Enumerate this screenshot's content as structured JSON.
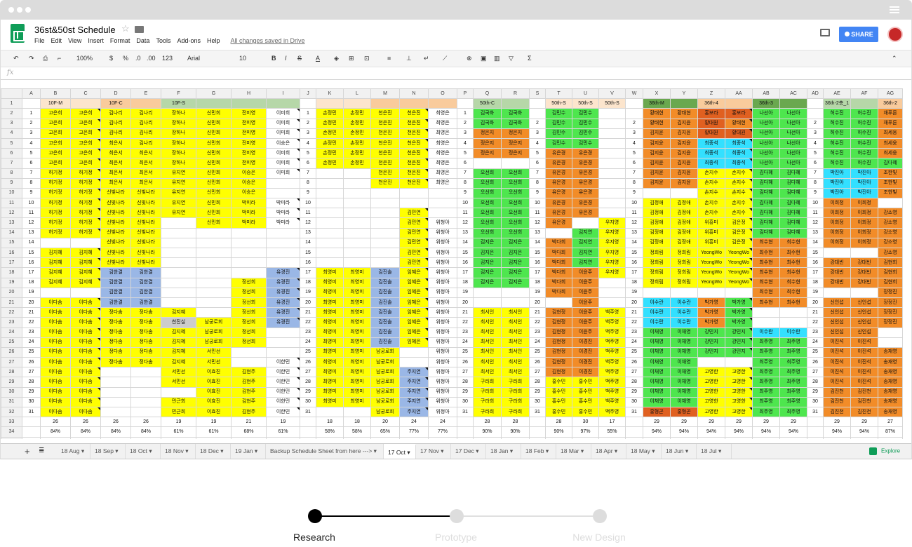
{
  "doc": {
    "title": "36st&50st Schedule",
    "saved": "All changes saved in Drive",
    "share": "SHARE",
    "menu": [
      "File",
      "Edit",
      "View",
      "Insert",
      "Format",
      "Data",
      "Tools",
      "Add-ons",
      "Help"
    ]
  },
  "toolbar": {
    "zoom": "100%",
    "currency": "$",
    "percent": "%",
    "dec1": ".0",
    "dec2": ".00",
    "numfmt": "123",
    "font": "Arial",
    "size": "10",
    "bold": "B",
    "italic": "I",
    "strike": "S",
    "fontcolor": "A"
  },
  "formula_bar": {
    "label": "fx",
    "value": ""
  },
  "columns": [
    "A",
    "B",
    "C",
    "D",
    "E",
    "F",
    "G",
    "H",
    "I",
    "J",
    "K",
    "L",
    "M",
    "N",
    "O",
    "P",
    "Q",
    "R",
    "S",
    "T",
    "U",
    "V",
    "W",
    "X",
    "Y",
    "Z",
    "AA",
    "AB",
    "AC",
    "AD",
    "AE",
    "AF",
    "AG"
  ],
  "header_row": [
    "",
    "10F-M",
    "",
    "10F-C",
    "",
    "10F-S",
    "",
    "",
    "",
    "",
    "",
    "",
    "",
    "",
    "",
    "",
    "50th-C",
    "",
    "",
    "50th-S",
    "50th-S",
    "50th-S",
    "",
    "36th-M",
    "",
    "36th-4",
    "",
    "36th-3",
    "",
    "",
    "36th-2층_1",
    "",
    "36th-2"
  ],
  "rows": [
    [
      "1",
      "고은희",
      "고은희",
      "김나리",
      "김나리",
      "장하나",
      "신민희",
      "전미영",
      "이미희",
      "1",
      "손정민",
      "손정민",
      "천은진",
      "천은진",
      "최영은",
      "1",
      "김국화",
      "김국화",
      "",
      "김민수",
      "김민수",
      "",
      "",
      "황태현",
      "황태현",
      "홍보라",
      "홍보라",
      "나선아",
      "나선아",
      "",
      "허수진",
      "허수진",
      "채푸른"
    ],
    [
      "2",
      "고은희",
      "고은희",
      "김나리",
      "김나리",
      "장하나",
      "신민희",
      "전미영",
      "이미희",
      "2",
      "손정민",
      "손정민",
      "천은진",
      "천은진",
      "최영은",
      "2",
      "김국화",
      "김국화",
      "2",
      "김민수",
      "김민수",
      "",
      "2",
      "황태현",
      "김지윤",
      "황대원",
      "황태현",
      "나선아",
      "나선아",
      "2",
      "허수진",
      "허수진",
      "채푸른"
    ],
    [
      "3",
      "고은희",
      "고은희",
      "김나리",
      "김나리",
      "장하나",
      "신민희",
      "전미영",
      "이미희",
      "3",
      "손정민",
      "손정민",
      "천은진",
      "천은진",
      "최영은",
      "3",
      "정은지",
      "정은지",
      "3",
      "김민수",
      "김민수",
      "",
      "3",
      "김지윤",
      "김지윤",
      "황대원",
      "황대원",
      "나선아",
      "나선아",
      "3",
      "허수진",
      "허수진",
      "최세웅"
    ],
    [
      "4",
      "고은희",
      "고은희",
      "최은서",
      "김나리",
      "장하나",
      "신민희",
      "전미영",
      "이승은",
      "4",
      "손정민",
      "손정민",
      "천은진",
      "천은진",
      "최영은",
      "4",
      "정은지",
      "정은지",
      "4",
      "김민수",
      "김민수",
      "",
      "4",
      "김지윤",
      "김지윤",
      "최종석",
      "최종석",
      "나선아",
      "나선아",
      "4",
      "허수진",
      "허수진",
      "최세웅"
    ],
    [
      "5",
      "고은희",
      "고은희",
      "최은서",
      "최은서",
      "장하나",
      "신민희",
      "전미영",
      "이미희",
      "5",
      "손정민",
      "손정민",
      "천은진",
      "천은진",
      "최영은",
      "5",
      "정은지",
      "정은지",
      "5",
      "유은경",
      "유은경",
      "",
      "5",
      "김지윤",
      "김지윤",
      "최종석",
      "최종석",
      "나선아",
      "나선아",
      "5",
      "허수진",
      "허수진",
      "최세웅"
    ],
    [
      "6",
      "고은희",
      "고은희",
      "최은서",
      "최은서",
      "장하나",
      "신민희",
      "전미영",
      "이미희",
      "6",
      "손정민",
      "손정민",
      "천은진",
      "천은진",
      "최영은",
      "6",
      "",
      "",
      "6",
      "유은경",
      "유은경",
      "",
      "6",
      "김지윤",
      "김지윤",
      "최종석",
      "최종석",
      "나선아",
      "나선아",
      "6",
      "허수진",
      "허수진",
      "김다혜"
    ],
    [
      "7",
      "허기정",
      "허기정",
      "최은서",
      "최은서",
      "유지연",
      "신민희",
      "이승은",
      "이미희",
      "7",
      "",
      "",
      "천은진",
      "천은진",
      "최영은",
      "7",
      "오선희",
      "오선희",
      "7",
      "유은경",
      "유은경",
      "",
      "7",
      "김지윤",
      "김지윤",
      "손지수",
      "손지수",
      "김다혜",
      "김다혜",
      "7",
      "박진아",
      "박진아",
      "조한빛"
    ],
    [
      "8",
      "허기정",
      "허기정",
      "최은서",
      "최은서",
      "유지연",
      "신민희",
      "이승은",
      "",
      "8",
      "",
      "",
      "천은진",
      "천은진",
      "최영은",
      "8",
      "오선희",
      "오선희",
      "8",
      "유은경",
      "유은경",
      "",
      "8",
      "김지윤",
      "김지윤",
      "손지수",
      "손지수",
      "김다혜",
      "김다혜",
      "8",
      "박진아",
      "박진아",
      "조한빛"
    ],
    [
      "9",
      "허기정",
      "허기정",
      "신빛나라",
      "신빛나라",
      "유지연",
      "신민희",
      "이승은",
      "",
      "9",
      "",
      "",
      "",
      "",
      "",
      "9",
      "오선희",
      "오선희",
      "9",
      "유은경",
      "유은경",
      "",
      "9",
      "",
      "",
      "손지수",
      "손지수",
      "김다혜",
      "김다혜",
      "9",
      "박진아",
      "박진아",
      "조한빛"
    ],
    [
      "10",
      "허기정",
      "허기정",
      "신빛나라",
      "신빛나라",
      "유지연",
      "신민희",
      "박미라",
      "박미라",
      "10",
      "",
      "",
      "",
      "",
      "",
      "10",
      "오선희",
      "오선희",
      "10",
      "유은경",
      "유은경",
      "",
      "10",
      "김정애",
      "김정애",
      "손지수",
      "손지수",
      "김다혜",
      "김다혜",
      "10",
      "이희정",
      "이희정",
      ""
    ],
    [
      "11",
      "허기정",
      "허기정",
      "신빛나라",
      "신빛나라",
      "유지연",
      "신민희",
      "박미라",
      "박미라",
      "11",
      "",
      "",
      "",
      "김민연",
      "",
      "11",
      "오선희",
      "오선희",
      "11",
      "유은경",
      "유은경",
      "",
      "11",
      "김정애",
      "김정애",
      "손지수",
      "손지수",
      "김다혜",
      "김다혜",
      "11",
      "이희정",
      "이희정",
      "강소영"
    ],
    [
      "12",
      "허기정",
      "허기정",
      "신빛나라",
      "신빛나라",
      "",
      "신민희",
      "박미라",
      "박미라",
      "12",
      "",
      "",
      "",
      "김민연",
      "위청아",
      "12",
      "오선희",
      "오선희",
      "12",
      "유은경",
      "",
      "우지영",
      "12",
      "김정애",
      "김정애",
      "위흥미",
      "김은정",
      "김다혜",
      "김다혜",
      "12",
      "이희정",
      "이희정",
      "강소영"
    ],
    [
      "13",
      "허기정",
      "허기정",
      "신빛나라",
      "신빛나라",
      "",
      "",
      "",
      "",
      "13",
      "",
      "",
      "",
      "김민연",
      "위청아",
      "13",
      "오선희",
      "오선희",
      "13",
      "",
      "김지연",
      "우지영",
      "13",
      "김정애",
      "김정애",
      "위흥미",
      "김은정",
      "김다혜",
      "김다혜",
      "13",
      "이희정",
      "이희정",
      "강소영"
    ],
    [
      "14",
      "",
      "",
      "신빛나라",
      "신빛나라",
      "",
      "",
      "",
      "",
      "14",
      "",
      "",
      "",
      "김민연",
      "위청아",
      "14",
      "김지은",
      "김지은",
      "14",
      "박다희",
      "김지연",
      "우지영",
      "14",
      "김정애",
      "김정애",
      "위흥미",
      "김은정",
      "최수현",
      "최수현",
      "14",
      "이희정",
      "이희정",
      "강소영"
    ],
    [
      "15",
      "김지혜",
      "김지혜",
      "신빛나라",
      "신빛나라",
      "",
      "",
      "",
      "",
      "15",
      "",
      "",
      "",
      "김민연",
      "위청아",
      "15",
      "김지은",
      "김지은",
      "15",
      "박다희",
      "김지연",
      "우지영",
      "15",
      "정희림",
      "정희림",
      "YeongWo",
      "YeongWo",
      "최수현",
      "최수현",
      "15",
      "",
      "",
      "강소영"
    ],
    [
      "16",
      "김지혜",
      "김지혜",
      "신빛나라",
      "신빛나라",
      "",
      "",
      "",
      "",
      "16",
      "",
      "",
      "",
      "김민연",
      "위청아",
      "16",
      "김지은",
      "김지은",
      "16",
      "박다희",
      "김지연",
      "우지영",
      "16",
      "정희림",
      "정희림",
      "YeongWo",
      "YeongWo",
      "최수현",
      "최수현",
      "16",
      "강대빈",
      "강대빈",
      "김현희"
    ],
    [
      "17",
      "김지혜",
      "김지혜",
      "김한결",
      "김한결",
      "",
      "",
      "",
      "유경진",
      "17",
      "최영미",
      "최영미",
      "김진솔",
      "임혜은",
      "위청아",
      "17",
      "김지은",
      "김지은",
      "17",
      "박다희",
      "이윤주",
      "우지영",
      "17",
      "정희림",
      "정희림",
      "YeongWo",
      "YeongWo",
      "최수현",
      "최수현",
      "17",
      "강대빈",
      "강대빈",
      "김현희"
    ],
    [
      "18",
      "김지혜",
      "김지혜",
      "김한결",
      "김한결",
      "",
      "",
      "정선희",
      "유경진",
      "18",
      "최영미",
      "최영미",
      "김진솔",
      "임혜은",
      "위청아",
      "18",
      "김지은",
      "김지은",
      "18",
      "박다희",
      "이윤주",
      "",
      "18",
      "정희림",
      "정희림",
      "YeongWo",
      "YeongWo",
      "최수현",
      "최수현",
      "18",
      "강대빈",
      "강대빈",
      "김현희"
    ],
    [
      "19",
      "",
      "",
      "김한결",
      "김한결",
      "",
      "",
      "정선희",
      "유경진",
      "19",
      "최영미",
      "최영미",
      "김진솔",
      "임혜은",
      "위청아",
      "19",
      "",
      "",
      "19",
      "박다희",
      "이윤주",
      "",
      "19",
      "",
      "",
      "",
      "",
      "최수현",
      "최수현",
      "19",
      "",
      "",
      "장정진"
    ],
    [
      "20",
      "이다솜",
      "이다솜",
      "김한결",
      "김한결",
      "",
      "",
      "정선희",
      "유경진",
      "20",
      "최영미",
      "최영미",
      "김진솔",
      "임혜은",
      "위청아",
      "20",
      "",
      "",
      "20",
      "",
      "이윤주",
      "",
      "20",
      "이수란",
      "이수란",
      "박가영",
      "박가영",
      "최수현",
      "최수현",
      "20",
      "신인섭",
      "신인섭",
      "장정진"
    ],
    [
      "21",
      "이다솜",
      "이다솜",
      "정다솜",
      "정다솜",
      "김지혜",
      "",
      "정선희",
      "유경진",
      "21",
      "최영미",
      "최영미",
      "김진솔",
      "임혜은",
      "위청아",
      "21",
      "최서인",
      "최서인",
      "21",
      "김현정",
      "이윤주",
      "백주영",
      "21",
      "이수란",
      "이수란",
      "박가영",
      "박가영",
      "",
      "",
      "21",
      "신인섭",
      "신인섭",
      "장정진"
    ],
    [
      "22",
      "이다솜",
      "이다솜",
      "정다솜",
      "정다솜",
      "천진실",
      "남궁로회",
      "정선희",
      "유경진",
      "22",
      "최영미",
      "최영미",
      "김진솔",
      "임혜은",
      "위청아",
      "22",
      "최서인",
      "최서인",
      "22",
      "김현정",
      "이윤주",
      "백주영",
      "22",
      "이수란",
      "이수란",
      "박가영",
      "박가영",
      "",
      "",
      "22",
      "신인섭",
      "신인섭",
      "장정진"
    ],
    [
      "23",
      "이다솜",
      "이다솜",
      "정다솜",
      "정다솜",
      "김지혜",
      "남궁로회",
      "정선희",
      "",
      "23",
      "최영미",
      "최영미",
      "김진솔",
      "임혜은",
      "위청아",
      "23",
      "최서인",
      "최서인",
      "23",
      "김현정",
      "이윤주",
      "백주영",
      "23",
      "이채영",
      "이채영",
      "강민지",
      "강민지",
      "이수란",
      "이수란",
      "23",
      "신인섭",
      "신인섭",
      ""
    ],
    [
      "24",
      "이다솜",
      "이다솜",
      "정다솜",
      "정다솜",
      "김지혜",
      "남궁로회",
      "정선희",
      "",
      "24",
      "최영미",
      "최영미",
      "김진솔",
      "임혜은",
      "위청아",
      "24",
      "최서인",
      "최서인",
      "24",
      "김현정",
      "이경진",
      "백주영",
      "24",
      "이채영",
      "이채영",
      "강민지",
      "강민지",
      "최주영",
      "최주영",
      "24",
      "이진석",
      "이진석",
      ""
    ],
    [
      "25",
      "이다솜",
      "이다솜",
      "정다솜",
      "정다솜",
      "김지혜",
      "서민선",
      "",
      "",
      "25",
      "최영미",
      "최영미",
      "남궁로회",
      "",
      "위청아",
      "25",
      "최서인",
      "최서인",
      "25",
      "김현정",
      "이경진",
      "백주영",
      "25",
      "이채영",
      "이채영",
      "강민지",
      "강민지",
      "최주영",
      "최주영",
      "25",
      "이진석",
      "이진석",
      "송재영"
    ],
    [
      "26",
      "이다솜",
      "이다솜",
      "정다솜",
      "정다솜",
      "김지혜",
      "서민선",
      "",
      "이한민",
      "26",
      "최영미",
      "최영미",
      "남궁로회",
      "",
      "위청아",
      "26",
      "최서인",
      "최서인",
      "26",
      "김현정",
      "이경진",
      "백주영",
      "26",
      "이채영",
      "이채영",
      "",
      "",
      "최주영",
      "최주영",
      "26",
      "이진석",
      "이진석",
      "송재영"
    ],
    [
      "27",
      "이다솜",
      "이다솜",
      "",
      "",
      "서민선",
      "이효진",
      "김현주",
      "이한민",
      "27",
      "최영미",
      "최영미",
      "남궁로회",
      "주지연",
      "위청아",
      "27",
      "최서인",
      "최서인",
      "27",
      "김현정",
      "이경진",
      "백주영",
      "27",
      "이채영",
      "이채영",
      "고영한",
      "고영한",
      "최주영",
      "최주영",
      "27",
      "이진석",
      "이진석",
      "송재영"
    ],
    [
      "28",
      "이다솜",
      "이다솜",
      "",
      "",
      "서민선",
      "이효진",
      "김현주",
      "이한민",
      "28",
      "최영미",
      "최영미",
      "남궁로회",
      "주지연",
      "위청아",
      "28",
      "구라희",
      "구라희",
      "28",
      "홍수민",
      "홍수민",
      "백주영",
      "28",
      "이채영",
      "이채영",
      "고영한",
      "고영한",
      "최주영",
      "최주영",
      "28",
      "이진석",
      "이진석",
      "송재영"
    ],
    [
      "29",
      "이다솜",
      "이다솜",
      "",
      "",
      "",
      "이효진",
      "김현주",
      "이한민",
      "29",
      "최영미",
      "최영미",
      "남궁로회",
      "주지연",
      "위청아",
      "29",
      "구라희",
      "구라희",
      "29",
      "홍수민",
      "홍수민",
      "백주영",
      "29",
      "이채영",
      "이채영",
      "고영한",
      "고영한",
      "최주영",
      "최주영",
      "29",
      "김진천",
      "김진천",
      "송재영"
    ],
    [
      "30",
      "이다솜",
      "이다솜",
      "",
      "",
      "민근희",
      "이효진",
      "김현주",
      "이한민",
      "30",
      "최영미",
      "최영미",
      "남궁로회",
      "주지연",
      "위청아",
      "30",
      "구라희",
      "구라희",
      "30",
      "홍수민",
      "홍수민",
      "백주영",
      "30",
      "이채영",
      "이채영",
      "고영한",
      "고영한",
      "최주영",
      "최주영",
      "30",
      "김진천",
      "김진천",
      "송재영"
    ],
    [
      "31",
      "이다솜",
      "이다솜",
      "",
      "",
      "민근희",
      "이효진",
      "김현주",
      "이한민",
      "31",
      "",
      "",
      "남궁로회",
      "주지연",
      "위청아",
      "31",
      "구라희",
      "구라희",
      "31",
      "홍수민",
      "홍수민",
      "백주영",
      "31",
      "홍형곤",
      "홍형곤",
      "고영한",
      "고영한",
      "최주영",
      "최주영",
      "31",
      "김진천",
      "김진천",
      "송재영"
    ]
  ],
  "count_row": [
    "",
    "26",
    "26",
    "26",
    "26",
    "19",
    "19",
    "21",
    "19",
    "",
    "18",
    "18",
    "20",
    "24",
    "24",
    "",
    "28",
    "28",
    "",
    "28",
    "30",
    "17",
    "",
    "29",
    "29",
    "29",
    "29",
    "29",
    "29",
    "",
    "29",
    "29",
    "27"
  ],
  "pct_row": [
    "",
    "84%",
    "84%",
    "84%",
    "84%",
    "61%",
    "61%",
    "68%",
    "61%",
    "",
    "58%",
    "58%",
    "65%",
    "77%",
    "77%",
    "",
    "90%",
    "90%",
    "",
    "90%",
    "97%",
    "55%",
    "",
    "94%",
    "94%",
    "94%",
    "94%",
    "94%",
    "94%",
    "",
    "94%",
    "94%",
    "87%"
  ],
  "sheet_tabs": [
    "18 Aug",
    "18 Sep",
    "18 Oct",
    "18 Nov",
    "18 Dec",
    "19 Jan",
    "Backup Schedule Sheet from here --->",
    "17 Oct",
    "17 Nov",
    "17 Dec",
    "18 Jan",
    "18 Feb",
    "18 Mar",
    "18 Apr",
    "18 May",
    "18 Jun",
    "18 Jul"
  ],
  "active_tab": "17 Oct",
  "explore": "Explore",
  "steps": [
    {
      "label": "Research",
      "active": true
    },
    {
      "label": "Prototype",
      "active": false
    },
    {
      "label": "New Design",
      "active": false
    }
  ]
}
